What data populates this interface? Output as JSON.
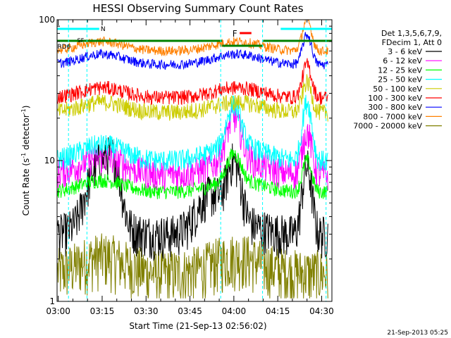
{
  "chart_data": {
    "type": "line",
    "title": "HESSI Observing Summary Count Rates",
    "xlabel": "Start Time (21-Sep-13 02:56:02)",
    "ylabel_main": "Count Rate (s",
    "ylabel_sup1": "-1",
    "ylabel_mid": " detector",
    "ylabel_sup2": "-1",
    "ylabel_end": ")",
    "yscale": "log",
    "ylim": [
      1,
      100
    ],
    "yticks": [
      "1",
      "10",
      "100"
    ],
    "xlim": [
      -0.4,
      93.5
    ],
    "xticks": [
      {
        "label": "03:00",
        "minutes": 0
      },
      {
        "label": "03:15",
        "minutes": 15
      },
      {
        "label": "03:30",
        "minutes": 30
      },
      {
        "label": "03:45",
        "minutes": 45
      },
      {
        "label": "04:00",
        "minutes": 60
      },
      {
        "label": "04:15",
        "minutes": 75
      },
      {
        "label": "04:30",
        "minutes": 90
      }
    ],
    "legend_header": [
      "Det 1,3,5,6,7,9,",
      "FDecim 1, Att 0"
    ],
    "series": [
      {
        "name": "3 - 6 keV",
        "color": "#000000"
      },
      {
        "name": "6 - 12 keV",
        "color": "#ff00ff"
      },
      {
        "name": "12 - 25 keV",
        "color": "#00ff00"
      },
      {
        "name": "25 - 50 keV",
        "color": "#00ffff"
      },
      {
        "name": "50 - 100 keV",
        "color": "#cccc00"
      },
      {
        "name": "100 - 300 keV",
        "color": "#ff0000"
      },
      {
        "name": "300 - 800 keV",
        "color": "#0000ff"
      },
      {
        "name": "800 - 7000 keV",
        "color": "#ff8000"
      },
      {
        "name": "7000 - 20000 keV",
        "color": "#808000"
      }
    ],
    "annotations": [
      {
        "text": "N",
        "color": "#00ffff"
      },
      {
        "text": "F",
        "color": "#ff0000"
      },
      {
        "text": "RD6",
        "color": "#008000"
      },
      {
        "text": "SF",
        "color": "#008000"
      }
    ],
    "flag_bars": {
      "N_color": "#00ffff",
      "F_color": "#ff0000",
      "RD6_color": "#008000"
    },
    "footer": "21-Sep-2013 05:25"
  }
}
